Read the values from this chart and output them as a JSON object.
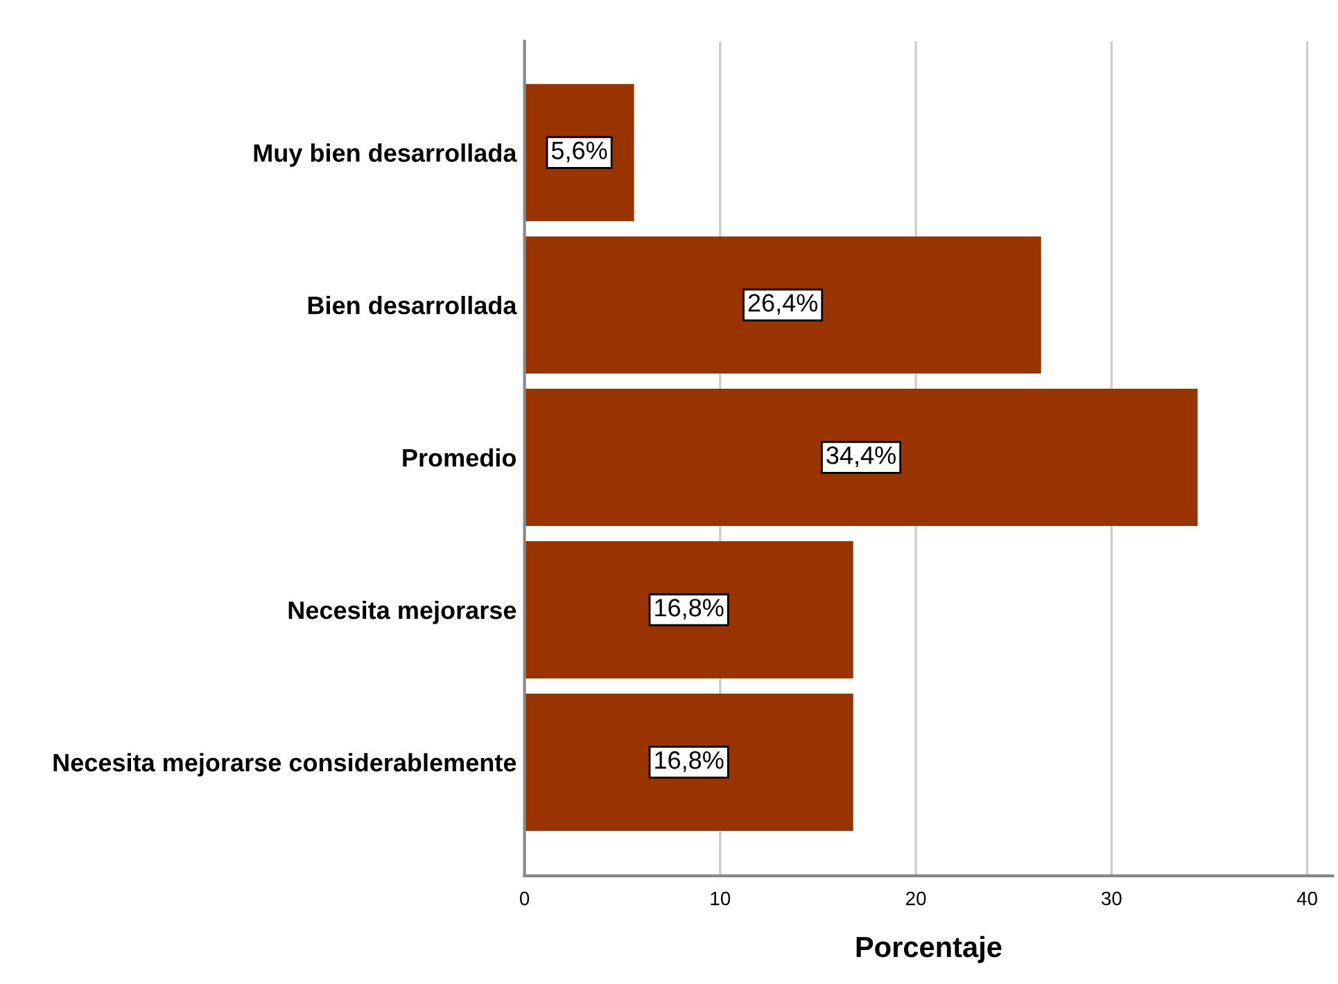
{
  "chart_data": {
    "type": "bar",
    "orientation": "horizontal",
    "xlabel": "Porcentaje",
    "categories": [
      "Muy bien desarrollada",
      "Bien desarrollada",
      "Promedio",
      "Necesita mejorarse",
      "Necesita mejorarse considerablemente"
    ],
    "values": [
      5.6,
      26.4,
      34.4,
      16.8,
      16.8
    ],
    "value_labels": [
      "5,6%",
      "26,4%",
      "34,4%",
      "16,8%",
      "16,8%"
    ],
    "color": "#993300",
    "xlim": [
      0,
      41.3
    ],
    "xticks": [
      0,
      10,
      20,
      30,
      40
    ],
    "grid": "x",
    "legend": false
  }
}
